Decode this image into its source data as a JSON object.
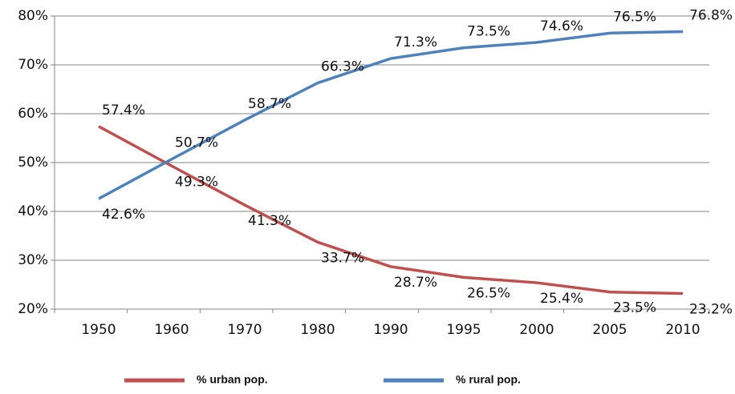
{
  "chart_data": {
    "type": "line",
    "categories": [
      "1950",
      "1960",
      "1970",
      "1980",
      "1990",
      "1995",
      "2000",
      "2005",
      "2010"
    ],
    "series": [
      {
        "name": "% urban pop.",
        "color": "#c0504d",
        "values": [
          57.4,
          49.3,
          41.3,
          33.7,
          28.7,
          26.5,
          25.4,
          23.5,
          23.2
        ],
        "value_labels": [
          "57.4%",
          "49.3%",
          "41.3%",
          "33.7%",
          "28.7%",
          "26.5%",
          "25.4%",
          "23.5%",
          "23.2%"
        ]
      },
      {
        "name": "% rural pop.",
        "color": "#4f81bd",
        "values": [
          42.6,
          50.7,
          58.7,
          66.3,
          71.3,
          73.5,
          74.6,
          76.5,
          76.8
        ],
        "value_labels": [
          "42.6%",
          "50.7%",
          "58.7%",
          "66.3%",
          "71.3%",
          "73.5%",
          "74.6%",
          "76.5%",
          "76.8%"
        ]
      }
    ],
    "ylim": [
      20,
      80
    ],
    "yticks": [
      {
        "value": 20,
        "label": "20%"
      },
      {
        "value": 30,
        "label": "30%"
      },
      {
        "value": 40,
        "label": "40%"
      },
      {
        "value": 50,
        "label": "50%"
      },
      {
        "value": 60,
        "label": "60%"
      },
      {
        "value": 70,
        "label": "70%"
      },
      {
        "value": 80,
        "label": "80%"
      }
    ],
    "grid": true,
    "legend": "bottom"
  }
}
